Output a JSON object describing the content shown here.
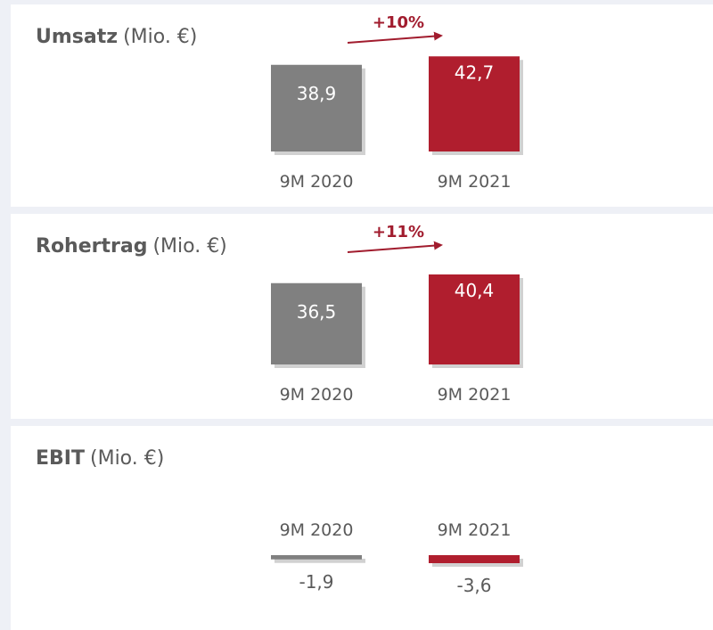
{
  "chart_data": [
    {
      "type": "bar",
      "title": "Umsatz",
      "subtitle": "(Mio. €)",
      "categories": [
        "9M 2020",
        "9M 2021"
      ],
      "values": [
        38.9,
        42.7
      ],
      "value_labels": [
        "38,9",
        "42,7"
      ],
      "colors": [
        "#808080",
        "#b01e2e"
      ],
      "annotation": "+10%"
    },
    {
      "type": "bar",
      "title": "Rohertrag",
      "subtitle": "(Mio. €)",
      "categories": [
        "9M 2020",
        "9M 2021"
      ],
      "values": [
        36.5,
        40.4
      ],
      "value_labels": [
        "36,5",
        "40,4"
      ],
      "colors": [
        "#808080",
        "#b01e2e"
      ],
      "annotation": "+11%"
    },
    {
      "type": "bar",
      "title": "EBIT",
      "subtitle": "(Mio. €)",
      "categories": [
        "9M 2020",
        "9M 2021"
      ],
      "values": [
        -1.9,
        -3.6
      ],
      "value_labels": [
        "-1,9",
        "-3,6"
      ],
      "colors": [
        "#808080",
        "#b01e2e"
      ]
    }
  ]
}
